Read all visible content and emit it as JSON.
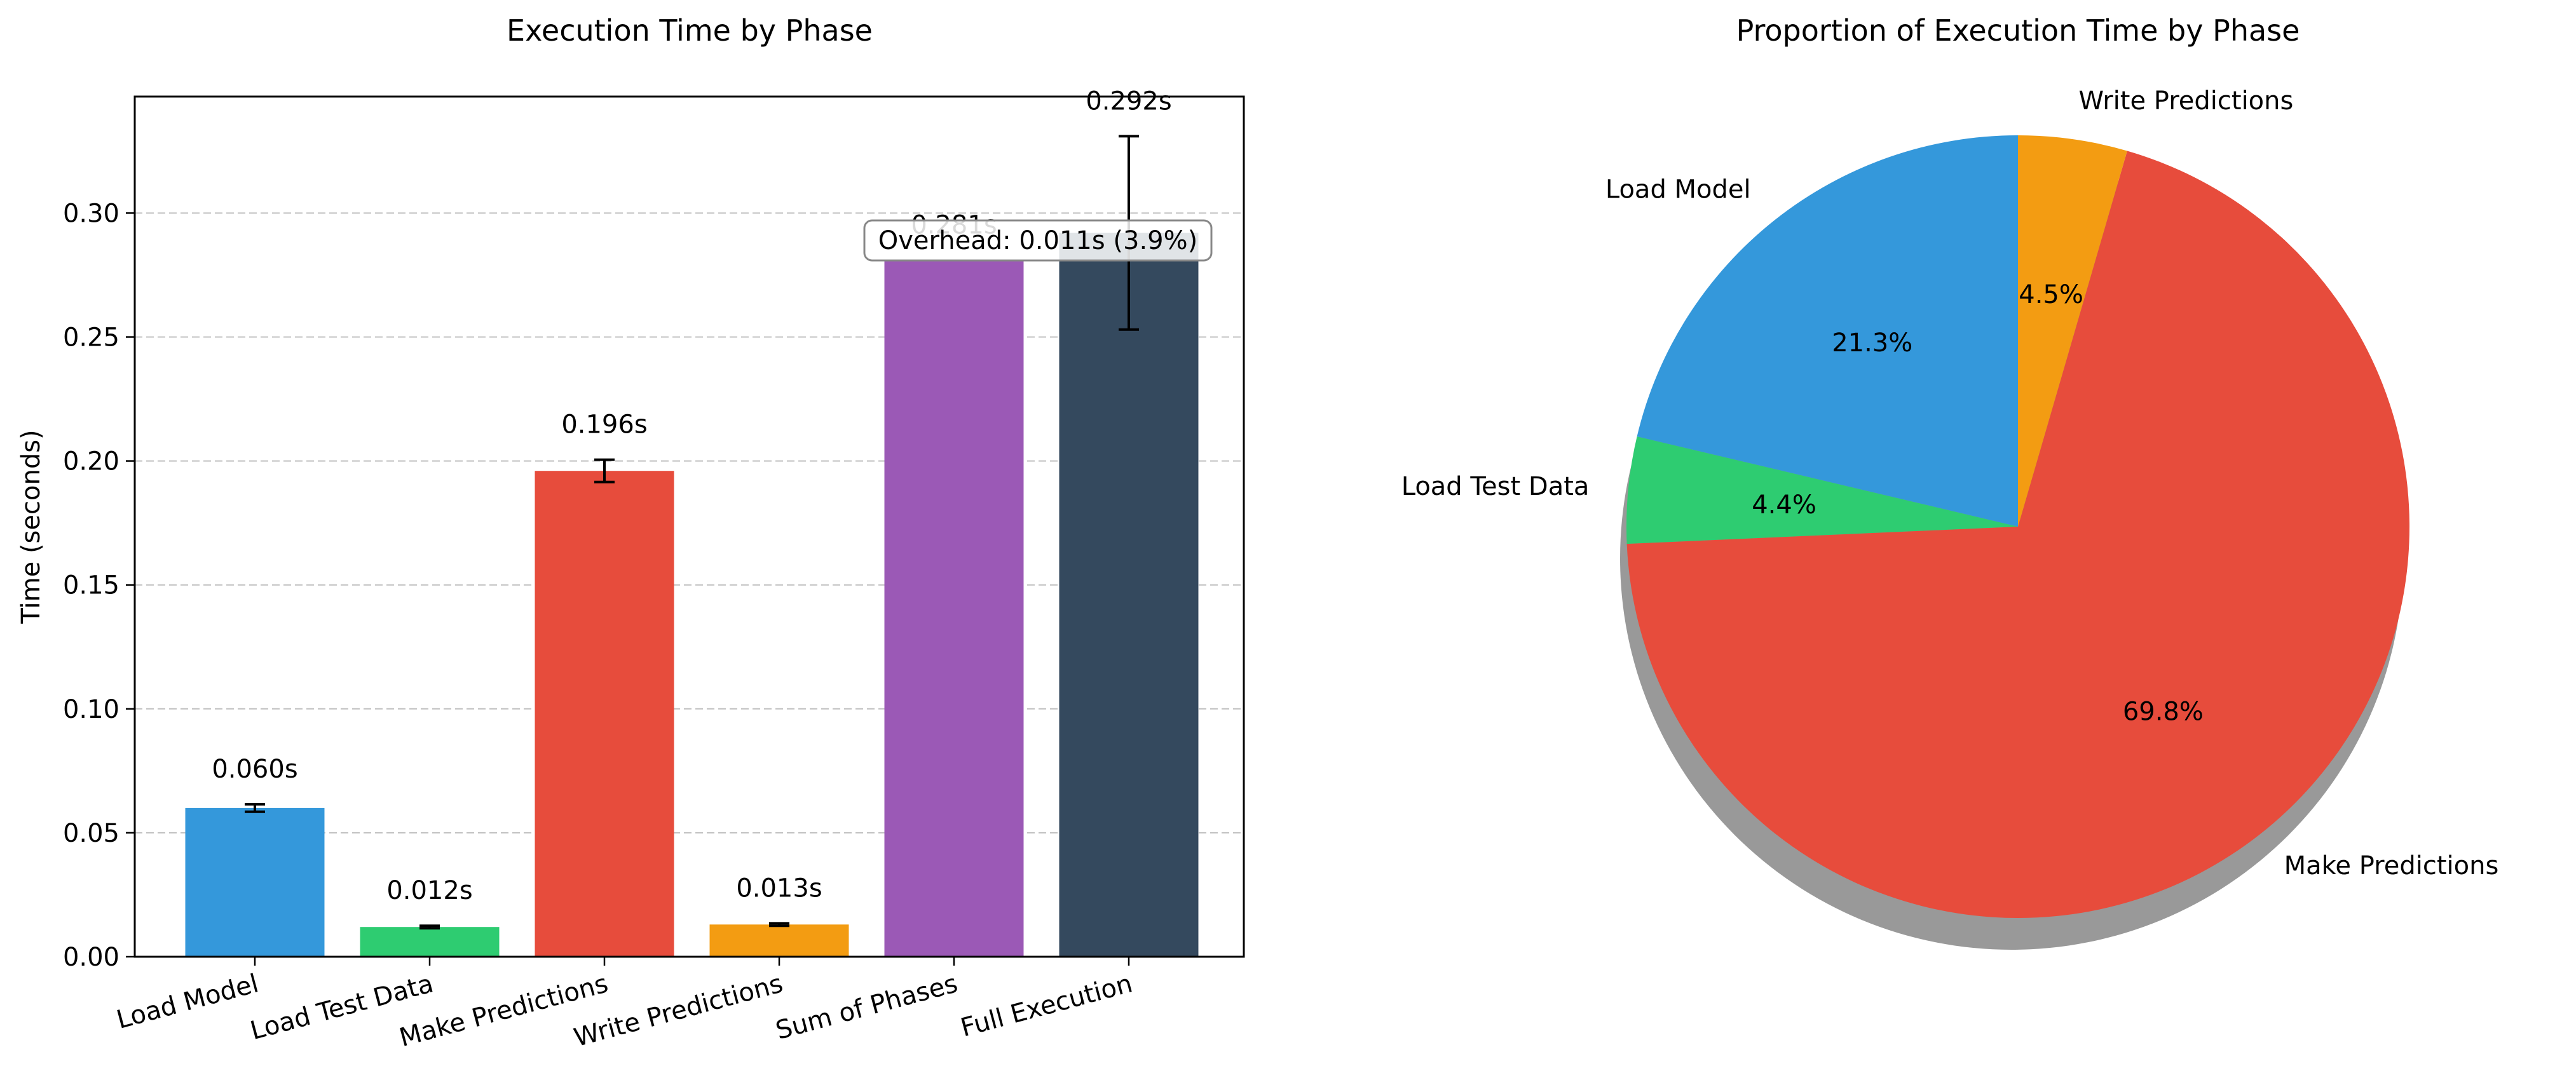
{
  "chart_data": [
    {
      "type": "bar",
      "title": "Execution Time by Phase",
      "xlabel": "",
      "ylabel": "Time (seconds)",
      "ylim": [
        0,
        0.347
      ],
      "yticks": [
        0.0,
        0.05,
        0.1,
        0.15,
        0.2,
        0.25,
        0.3
      ],
      "ytick_labels": [
        "0.00",
        "0.05",
        "0.10",
        "0.15",
        "0.20",
        "0.25",
        "0.30"
      ],
      "grid": "y dashed",
      "categories": [
        "Load Model",
        "Load Test Data",
        "Make Predictions",
        "Write Predictions",
        "Sum of Phases",
        "Full Execution"
      ],
      "values": [
        0.06,
        0.012,
        0.196,
        0.013,
        0.281,
        0.292
      ],
      "errors": [
        0.0015,
        0.0005,
        0.0045,
        0.0005,
        null,
        0.039
      ],
      "value_labels": [
        "0.060s",
        "0.012s",
        "0.196s",
        "0.013s",
        "0.281s",
        "0.292s"
      ],
      "colors": [
        "#3498db",
        "#2ecc71",
        "#e74c3c",
        "#f39c12",
        "#9b59b6",
        "#34495e"
      ],
      "annotation": "Overhead: 0.011s (3.9%)"
    },
    {
      "type": "pie",
      "title": "Proportion of Execution Time by Phase",
      "labels": [
        "Load Model",
        "Load Test Data",
        "Make Predictions",
        "Write Predictions"
      ],
      "values": [
        21.3,
        4.4,
        69.8,
        4.5
      ],
      "pct_labels": [
        "21.3%",
        "4.4%",
        "69.8%",
        "4.5%"
      ],
      "colors": [
        "#3498db",
        "#2ecc71",
        "#e74c3c",
        "#f39c12"
      ],
      "start_angle": 90,
      "direction": "counterclockwise",
      "shadow": true
    }
  ]
}
